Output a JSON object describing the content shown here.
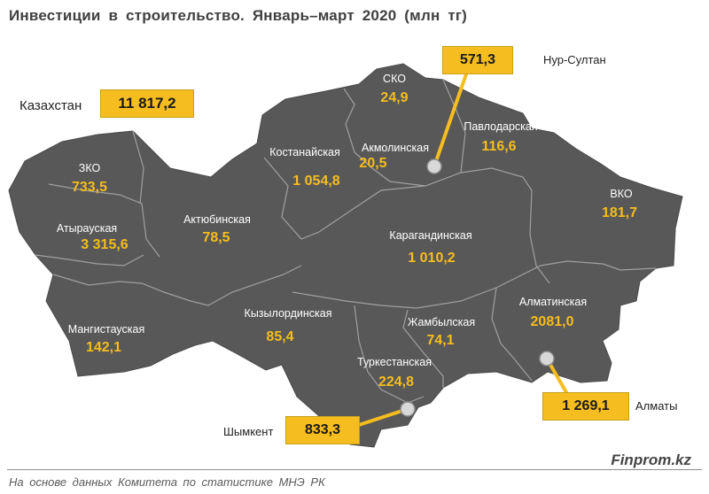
{
  "title": "Инвестиции  в строительство. Январь–март 2020 (млн тг)",
  "total": {
    "label": "Казахстан",
    "value": "11 817,2"
  },
  "regions": [
    {
      "name": "СКО",
      "value": "24,9"
    },
    {
      "name": "Павлодарская",
      "value": "116,6"
    },
    {
      "name": "Костанайская",
      "value": "1 054,8"
    },
    {
      "name": "Акмолинская",
      "value": "20,5"
    },
    {
      "name": "ЗКО",
      "value": "733,5"
    },
    {
      "name": "Атырауская",
      "value": "3 315,6"
    },
    {
      "name": "Актюбинская",
      "value": "78,5"
    },
    {
      "name": "ВКО",
      "value": "181,7"
    },
    {
      "name": "Карагандинская",
      "value": "1 010,2"
    },
    {
      "name": "Мангистауская",
      "value": "142,1"
    },
    {
      "name": "Кызылординская",
      "value": "85,4"
    },
    {
      "name": "Жамбылская",
      "value": "74,1"
    },
    {
      "name": "Алматинская",
      "value": "2081,0"
    },
    {
      "name": "Туркестанская",
      "value": "224,8"
    }
  ],
  "cities": [
    {
      "name": "Нур-Султан",
      "value": "571,3"
    },
    {
      "name": "Алматы",
      "value": "1 269,1"
    },
    {
      "name": "Шымкент",
      "value": "833,3"
    }
  ],
  "footer": {
    "source": "На основе данных  Комитета по статистике МНЭ РК",
    "brand": "Finprom.kz"
  },
  "colors": {
    "map_fill": "#585858",
    "border": "#a0a0a0",
    "accent": "#f5bd1f",
    "city_marker": "#d8d8d8"
  }
}
